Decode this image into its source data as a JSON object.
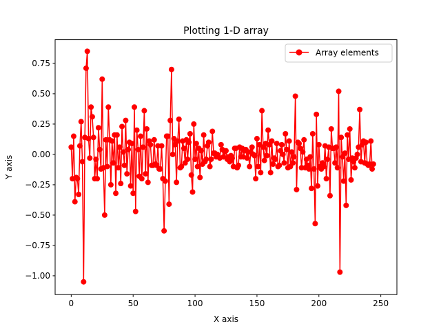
{
  "chart_data": {
    "type": "line",
    "title": "Plotting 1-D array",
    "xlabel": "X axis",
    "ylabel": "Y axis",
    "xlim": [
      -13,
      263
    ],
    "ylim": [
      -1.155,
      0.945
    ],
    "xticks": [
      0,
      50,
      100,
      150,
      200,
      250
    ],
    "yticks": [
      -1.0,
      -0.75,
      -0.5,
      -0.25,
      0.0,
      0.25,
      0.5,
      0.75
    ],
    "grid": false,
    "legend_position": "top-right",
    "series": [
      {
        "name": "Array elements",
        "color": "#ff0000",
        "marker": "circle",
        "values": [
          0.06,
          -0.2,
          0.15,
          -0.39,
          -0.19,
          -0.2,
          -0.33,
          0.07,
          0.27,
          -0.06,
          -1.05,
          0.14,
          0.71,
          0.85,
          0.13,
          -0.03,
          0.39,
          0.31,
          0.14,
          -0.2,
          -0.04,
          -0.2,
          0.22,
          0.04,
          -0.12,
          0.62,
          -0.11,
          -0.5,
          0.12,
          -0.1,
          0.39,
          0.12,
          -0.25,
          0.11,
          -0.07,
          0.16,
          -0.32,
          0.16,
          -0.11,
          0.06,
          -0.24,
          0.23,
          0.02,
          -0.09,
          0.28,
          -0.16,
          0.04,
          0.1,
          -0.26,
          0.09,
          -0.32,
          0.39,
          -0.47,
          0.2,
          0.04,
          -0.18,
          0.15,
          -0.2,
          0.06,
          0.36,
          -0.16,
          0.21,
          -0.23,
          0.11,
          0.08,
          -0.09,
          -0.09,
          0.12,
          -0.08,
          -0.09,
          0.07,
          -0.12,
          -0.12,
          0.07,
          -0.2,
          -0.63,
          -0.22,
          0.15,
          0.15,
          -0.41,
          0.28,
          0.7,
          0.0,
          0.13,
          0.08,
          -0.23,
          0.11,
          0.29,
          -0.11,
          -0.1,
          0.11,
          0.05,
          -0.07,
          0.12,
          -0.04,
          0.1,
          0.17,
          -0.17,
          -0.31,
          0.25,
          -0.04,
          0.09,
          -0.1,
          0.05,
          -0.19,
          0.03,
          -0.08,
          0.16,
          -0.06,
          -0.04,
          0.07,
          0.1,
          -0.1,
          -0.04,
          0.19,
          0.01,
          0.01,
          -0.02,
          0.0,
          -0.02,
          -0.03,
          0.08,
          0.04,
          -0.02,
          0.02,
          0.03,
          -0.04,
          -0.02,
          -0.06,
          -0.01,
          -0.03,
          -0.1,
          0.05,
          0.05,
          -0.11,
          -0.09,
          0.06,
          -0.02,
          0.05,
          -0.02,
          0.03,
          0.04,
          -0.03,
          0.02,
          -0.1,
          0.02,
          0.06,
          0.0,
          -0.01,
          -0.2,
          0.13,
          -0.1,
          0.08,
          -0.15,
          0.36,
          0.06,
          -0.05,
          0.09,
          -0.01,
          0.2,
          0.08,
          -0.15,
          0.11,
          -0.08,
          -0.03,
          -0.04,
          0.09,
          -0.1,
          -0.09,
          0.03,
          0.08,
          0.0,
          -0.07,
          0.17,
          0.04,
          -0.11,
          0.11,
          -0.1,
          0.02,
          -0.07,
          -0.02,
          0.48,
          -0.29,
          0.1,
          0.09,
          0.05,
          -0.11,
          0.02,
          0.12,
          -0.11,
          -0.04,
          -0.09,
          -0.12,
          -0.02,
          -0.28,
          0.17,
          -0.12,
          -0.57,
          0.33,
          -0.26,
          0.08,
          -0.1,
          -0.12,
          -0.07,
          -0.1,
          0.07,
          -0.2,
          -0.04,
          0.06,
          -0.34,
          0.21,
          0.05,
          0.05,
          -0.07,
          0.06,
          -0.11,
          0.52,
          -0.97,
          0.14,
          -0.02,
          -0.22,
          0.01,
          -0.42,
          0.16,
          -0.04,
          0.21,
          -0.21,
          -0.03,
          -0.06,
          -0.11,
          -0.03,
          0.0,
          0.06,
          0.37,
          -0.06,
          0.08,
          0.11,
          -0.07,
          0.1,
          -0.08,
          -0.09,
          -0.08,
          0.11,
          -0.12,
          -0.08
        ]
      }
    ]
  }
}
